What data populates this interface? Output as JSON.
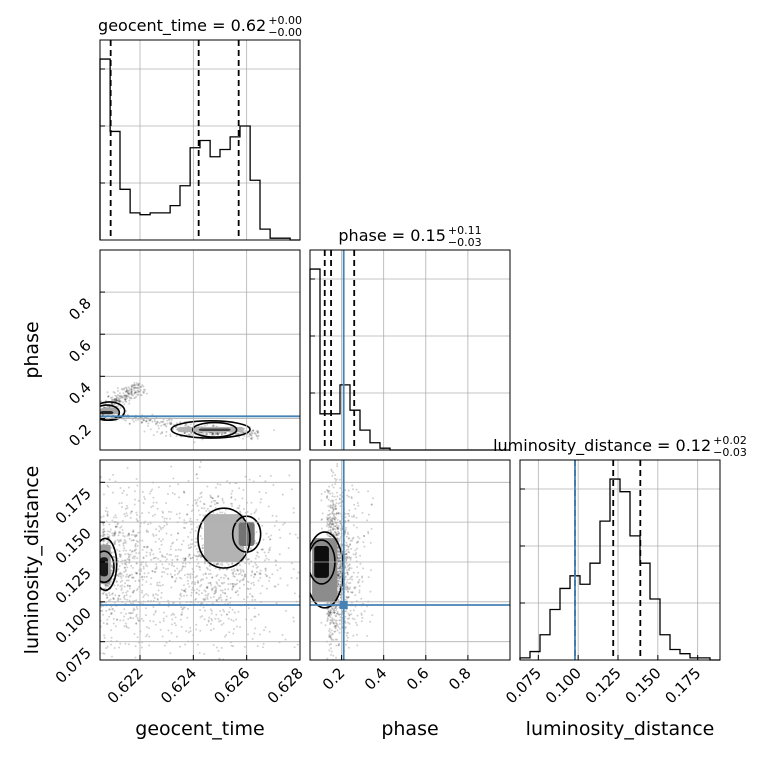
{
  "chart_data": {
    "type": "corner",
    "parameters": [
      "geocent_time",
      "phase",
      "luminosity_distance"
    ],
    "truth": {
      "phase": 0.21,
      "luminosity_distance": 0.098
    },
    "titles": [
      {
        "param": "geocent_time",
        "label": "geocent_time = ",
        "median": "0.62",
        "plus": "+0.00",
        "minus": "−0.00"
      },
      {
        "param": "phase",
        "label": "phase = ",
        "median": "0.15",
        "plus": "+0.11",
        "minus": "−0.03"
      },
      {
        "param": "luminosity_distance",
        "label": "luminosity_distance = ",
        "median": "0.12",
        "plus": "+0.02",
        "minus": "−0.03"
      }
    ],
    "axis_labels": {
      "x": [
        "geocent_time",
        "phase",
        "luminosity_distance"
      ],
      "y": [
        "phase",
        "luminosity_distance"
      ]
    },
    "ranges": {
      "geocent_time": [
        0.6205,
        0.628
      ],
      "phase": [
        0.05,
        1.0
      ],
      "luminosity_distance": [
        0.0635,
        0.189
      ]
    },
    "ticks": {
      "geocent_time": {
        "values": [
          0.622,
          0.624,
          0.626,
          0.628
        ],
        "labels": [
          "0.622",
          "0.624",
          "0.626",
          "0.628"
        ]
      },
      "phase": {
        "values": [
          0.2,
          0.4,
          0.6,
          0.8
        ],
        "labels": [
          "0.2",
          "0.4",
          "0.6",
          "0.8"
        ]
      },
      "luminosity_distance": {
        "values": [
          0.075,
          0.1,
          0.125,
          0.15,
          0.175
        ],
        "labels": [
          "0.075",
          "0.100",
          "0.125",
          "0.150",
          "0.175"
        ]
      }
    },
    "histograms": {
      "geocent_time": {
        "quantiles": [
          0.6209,
          0.6242,
          0.6257
        ],
        "bins": [
          0.6205,
          0.62088,
          0.62125,
          0.62163,
          0.622,
          0.62238,
          0.62275,
          0.62313,
          0.6235,
          0.62388,
          0.62425,
          0.62463,
          0.625,
          0.62538,
          0.62575,
          0.62613,
          0.6265,
          0.62688,
          0.62725,
          0.62763,
          0.628
        ],
        "counts": [
          1.0,
          0.6,
          0.28,
          0.15,
          0.14,
          0.15,
          0.15,
          0.19,
          0.3,
          0.51,
          0.55,
          0.46,
          0.5,
          0.57,
          0.63,
          0.33,
          0.06,
          0.01,
          0.01,
          0.0
        ]
      },
      "phase": {
        "quantiles": [
          0.12,
          0.15,
          0.26
        ],
        "bins": [
          0.05,
          0.0975,
          0.145,
          0.1925,
          0.24,
          0.2875,
          0.335,
          0.3825,
          0.43,
          0.4775,
          0.525,
          0.5725,
          0.62,
          0.6675,
          0.715,
          0.7625,
          0.81,
          0.8575,
          0.905,
          0.9525,
          1.0
        ],
        "counts": [
          1.0,
          0.2,
          0.2,
          0.36,
          0.22,
          0.11,
          0.04,
          0.01,
          0.0,
          0.0,
          0.0,
          0.0,
          0.0,
          0.0,
          0.0,
          0.0,
          0.0,
          0.0,
          0.0,
          0.0
        ]
      },
      "luminosity_distance": {
        "quantiles": [
          0.098,
          0.122,
          0.139
        ],
        "bins": [
          0.0635,
          0.06978,
          0.07605,
          0.08233,
          0.0886,
          0.09488,
          0.10115,
          0.10743,
          0.1137,
          0.11998,
          0.12625,
          0.13253,
          0.1388,
          0.14508,
          0.15135,
          0.15763,
          0.1639,
          0.17018,
          0.17645,
          0.18273,
          0.189
        ],
        "counts": [
          0.01,
          0.04,
          0.12,
          0.24,
          0.34,
          0.4,
          0.36,
          0.46,
          0.66,
          0.86,
          0.8,
          0.59,
          0.46,
          0.29,
          0.12,
          0.05,
          0.03,
          0.01,
          0.01,
          0.0
        ]
      }
    },
    "density_2d": {
      "phase_vs_geocent_time": [
        {
          "x": 0.6205,
          "y": 0.22,
          "w": 0.0007,
          "h": 0.03,
          "shade": 0.35
        },
        {
          "x": 0.6205,
          "y": 0.22,
          "w": 0.0005,
          "h": 0.015,
          "shade": 0.85
        },
        {
          "x": 0.6234,
          "y": 0.135,
          "w": 0.0025,
          "h": 0.025,
          "shade": 0.3
        },
        {
          "x": 0.6242,
          "y": 0.14,
          "w": 0.0012,
          "h": 0.012,
          "shade": 0.75
        }
      ],
      "luminosity_distance_vs_geocent_time": [
        {
          "x": 0.6205,
          "y": 0.111,
          "w": 0.0004,
          "h": 0.025,
          "shade": 0.4
        },
        {
          "x": 0.6205,
          "y": 0.116,
          "w": 0.0003,
          "h": 0.012,
          "shade": 0.9
        },
        {
          "x": 0.6244,
          "y": 0.125,
          "w": 0.0015,
          "h": 0.03,
          "shade": 0.3
        },
        {
          "x": 0.6257,
          "y": 0.135,
          "w": 0.0006,
          "h": 0.015,
          "shade": 0.55
        }
      ],
      "luminosity_distance_vs_phase": [
        {
          "x": 0.06,
          "y": 0.1,
          "w": 0.12,
          "h": 0.04,
          "shade": 0.45
        },
        {
          "x": 0.07,
          "y": 0.115,
          "w": 0.07,
          "h": 0.02,
          "shade": 0.95
        }
      ]
    },
    "grid": true,
    "truth_color": "#4682b4"
  }
}
